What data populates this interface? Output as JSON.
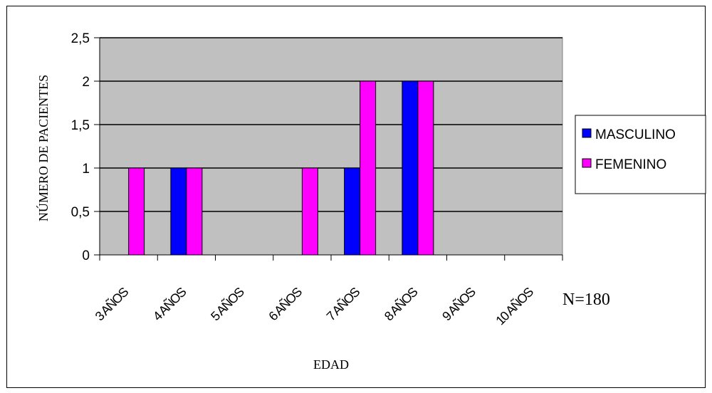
{
  "chart_data": {
    "type": "bar",
    "title": "",
    "xlabel": "EDAD",
    "ylabel": "NÚMERO DE PACIENTES",
    "categories": [
      "3 AÑOS",
      "4 AÑOS",
      "5 AÑOS",
      "6 AÑOS",
      "7 AÑOS",
      "8 AÑOS",
      "9 AÑOS",
      "10 AÑOS"
    ],
    "series": [
      {
        "name": "MASCULINO",
        "color": "#0000ff",
        "values": [
          0,
          1,
          0,
          0,
          1,
          2,
          0,
          0
        ]
      },
      {
        "name": "FEMENINO",
        "color": "#ff00ff",
        "values": [
          1,
          1,
          0,
          1,
          2,
          2,
          0,
          0
        ]
      }
    ],
    "ylim": [
      0,
      2.5
    ],
    "yticks": [
      "0",
      "0,5",
      "1",
      "1,5",
      "2",
      "2,5"
    ],
    "grid": true,
    "legend_position": "right",
    "plot_background": "#c0c0c0",
    "annotation": "N=180"
  }
}
